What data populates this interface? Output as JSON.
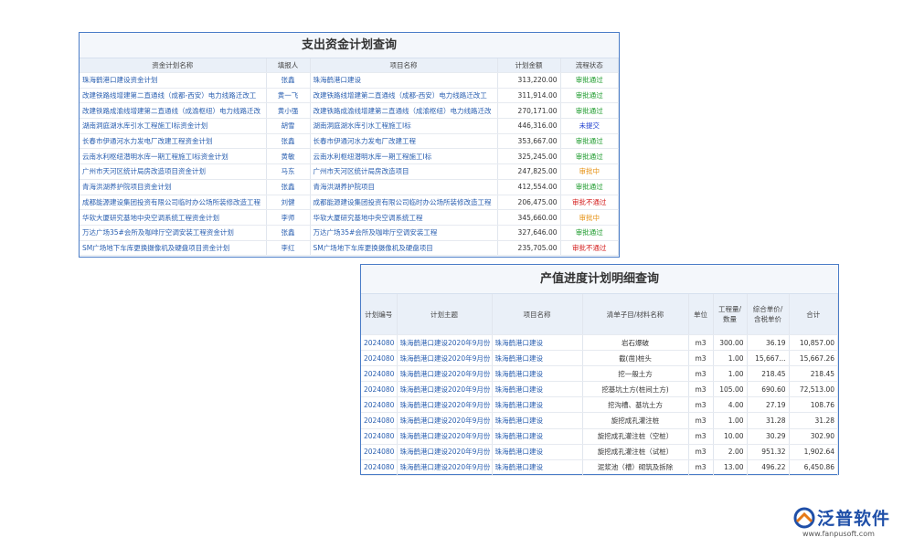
{
  "expense_plan": {
    "title": "支出资金计划查询",
    "headers": [
      "资金计划名称",
      "填报人",
      "项目名称",
      "计划金额",
      "流程状态"
    ],
    "rows": [
      [
        "珠海鹤港口建设资金计划",
        "张鑫",
        "珠海鹤港口建设",
        "313,220.00",
        "审批通过"
      ],
      [
        "改建铁路线增建第二直通线（成都-西安）电力线路迁改工",
        "黄一飞",
        "改建铁路线增建第二直通线（成都-西安）电力线路迁改工",
        "311,914.00",
        "审批通过"
      ],
      [
        "改建铁路成渝线增建第二直通线（成渝枢纽）电力线路迁改",
        "黄小强",
        "改建铁路成渝线增建第二直通线（成渝枢纽）电力线路迁改",
        "270,171.00",
        "审批通过"
      ],
      [
        "湖南洞庭湖水库引水工程施工I标资金计划",
        "胡雪",
        "湖南洞庭湖水库引水工程施工I标",
        "446,316.00",
        "未提交"
      ],
      [
        "长春市伊通河水力发电厂改建工程资金计划",
        "张鑫",
        "长春市伊通河水力发电厂改建工程",
        "353,667.00",
        "审批通过"
      ],
      [
        "云南水利枢纽潜明水库一期工程施工I标资金计划",
        "黄敏",
        "云南水利枢纽潜明水库一期工程施工I标",
        "325,245.00",
        "审批通过"
      ],
      [
        "广州市天河区统计局房改造项目资金计划",
        "马东",
        "广州市天河区统计局房改造项目",
        "247,825.00",
        "审批中"
      ],
      [
        "青海洪湖养护院项目资金计划",
        "张鑫",
        "青海洪湖养护院项目",
        "412,554.00",
        "审批通过"
      ],
      [
        "成都能源建设集团投资有限公司临时办公场所装修改造工程",
        "刘健",
        "成都能源建设集团投资有限公司临时办公场所装修改造工程",
        "206,475.00",
        "审批不通过"
      ],
      [
        "华软大厦研究基地中央空调系统工程资金计划",
        "李师",
        "华软大厦研究基地中央空调系统工程",
        "345,660.00",
        "审批中"
      ],
      [
        "万达广场35#会所及咖啡厅空调安装工程资金计划",
        "张鑫",
        "万达广场35#会所及咖啡厅空调安装工程",
        "327,646.00",
        "审批通过"
      ],
      [
        "SM广场地下车库更换摄像机及硬盘项目资金计划",
        "李红",
        "SM广场地下车库更换摄像机及硬盘项目",
        "235,705.00",
        "审批不通过"
      ]
    ]
  },
  "output_plan": {
    "title": "产值进度计划明细查询",
    "headers": [
      "计划编号",
      "计划主题",
      "项目名称",
      "清单子目/材料名称",
      "单位",
      "工程量/数量",
      "综合单价/含税单价",
      "合计"
    ],
    "rows": [
      [
        "2024080",
        "珠海鹤港口建设2020年9月份",
        "珠海鹤港口建设",
        "岩石爆破",
        "m3",
        "300.00",
        "36.19",
        "10,857.00"
      ],
      [
        "2024080",
        "珠海鹤港口建设2020年9月份",
        "珠海鹤港口建设",
        "截(凿)桩头",
        "m3",
        "1.00",
        "15,667...",
        "15,667.26"
      ],
      [
        "2024080",
        "珠海鹤港口建设2020年9月份",
        "珠海鹤港口建设",
        "挖一般土方",
        "m3",
        "1.00",
        "218.45",
        "218.45"
      ],
      [
        "2024080",
        "珠海鹤港口建设2020年9月份",
        "珠海鹤港口建设",
        "挖基坑土方(桩间土方)",
        "m3",
        "105.00",
        "690.60",
        "72,513.00"
      ],
      [
        "2024080",
        "珠海鹤港口建设2020年9月份",
        "珠海鹤港口建设",
        "挖沟槽、基坑土方",
        "m3",
        "4.00",
        "27.19",
        "108.76"
      ],
      [
        "2024080",
        "珠海鹤港口建设2020年9月份",
        "珠海鹤港口建设",
        "旋挖成孔灌注桩",
        "m3",
        "1.00",
        "31.28",
        "31.28"
      ],
      [
        "2024080",
        "珠海鹤港口建设2020年9月份",
        "珠海鹤港口建设",
        "旋挖成孔灌注桩（空桩）",
        "m3",
        "10.00",
        "30.29",
        "302.90"
      ],
      [
        "2024080",
        "珠海鹤港口建设2020年9月份",
        "珠海鹤港口建设",
        "旋挖成孔灌注桩（试桩）",
        "m3",
        "2.00",
        "951.32",
        "1,902.64"
      ],
      [
        "2024080",
        "珠海鹤港口建设2020年9月份",
        "珠海鹤港口建设",
        "泥浆池（槽）砌筑及拆除",
        "m3",
        "13.00",
        "496.22",
        "6,450.86"
      ]
    ]
  },
  "logo": {
    "name": "泛普软件",
    "url": "www.fanpusoft.com"
  }
}
